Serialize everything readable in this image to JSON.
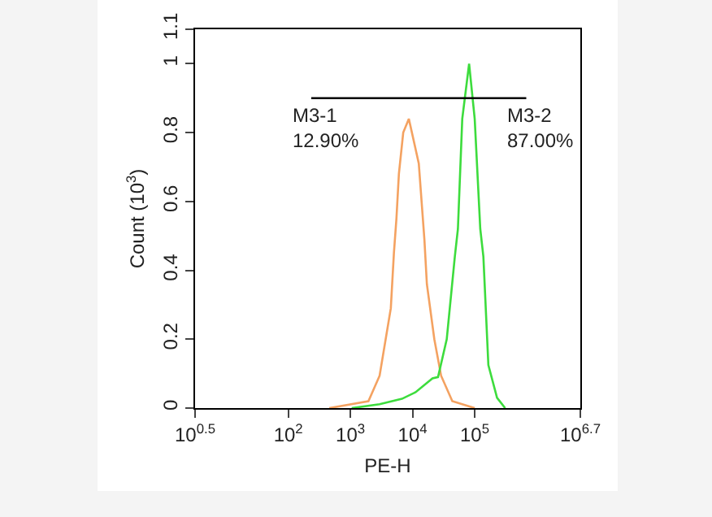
{
  "chart_data": {
    "type": "line",
    "xlabel": "PE-H",
    "ylabel": "Count (10$^{3}$)",
    "log": "x",
    "xlim": [
      3.162,
      5011872
    ],
    "ylim": [
      0,
      1.1
    ],
    "xticks": [
      {
        "value": 3.162,
        "label": "10$^{0.5}$"
      },
      {
        "value": 100,
        "label": "10$^{2}$"
      },
      {
        "value": 1000,
        "label": "10$^{3}$"
      },
      {
        "value": 10000,
        "label": "10$^{4}$"
      },
      {
        "value": 100000,
        "label": "10$^{5}$"
      },
      {
        "value": 5011872,
        "label": "10$^{6.7}$"
      }
    ],
    "yticks": [
      0,
      0.2,
      0.4,
      0.6,
      0.8,
      1,
      1.1
    ],
    "grid": false,
    "marker": "none",
    "line_style": "solid",
    "series": [
      {
        "color": "#f4a261",
        "x": [
          457,
          1950,
          2950,
          4470,
          5010,
          5500,
          6030,
          7080,
          8710,
          12600,
          15500,
          17000,
          22400,
          28800,
          43600,
          100000
        ],
        "values": [
          0,
          0.02,
          0.094,
          0.29,
          0.45,
          0.55,
          0.68,
          0.8,
          0.84,
          0.71,
          0.49,
          0.36,
          0.2,
          0.094,
          0.02,
          0
        ]
      },
      {
        "color": "#3ddc3d",
        "x": [
          1050,
          2950,
          6760,
          11200,
          20900,
          25700,
          35500,
          47900,
          53700,
          63100,
          81300,
          100000,
          123000,
          138000,
          166000,
          229000,
          309000
        ],
        "values": [
          0,
          0.011,
          0.027,
          0.046,
          0.086,
          0.09,
          0.2,
          0.44,
          0.52,
          0.84,
          1.0,
          0.84,
          0.52,
          0.44,
          0.125,
          0.03,
          0
        ]
      },
      {
        "color": "#000000",
        "x": [
          234,
          35500,
          676000
        ],
        "values": [
          0.9,
          0.9,
          0.9
        ]
      }
    ],
    "annotations": [
      "M3-1\n12.90%",
      "M3-2\n87.00%"
    ]
  }
}
